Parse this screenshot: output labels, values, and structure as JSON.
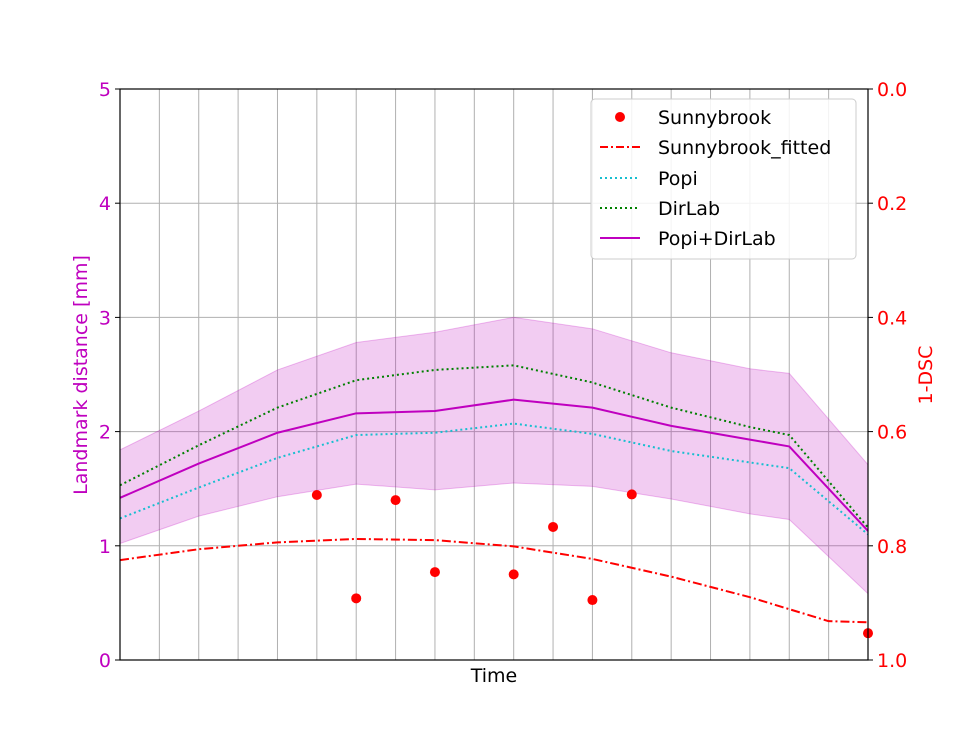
{
  "chart_data": {
    "type": "line",
    "xlabel": "Time",
    "ylabel_left": "Landmark distance [mm]",
    "ylabel_right": "1-DSC",
    "ylim_left": [
      0,
      5
    ],
    "ylim_right": [
      1.0,
      0.0
    ],
    "xlim": [
      0,
      19
    ],
    "x_grid": [
      0,
      1,
      2,
      3,
      4,
      5,
      6,
      7,
      8,
      9,
      10,
      11,
      12,
      13,
      14,
      15,
      16,
      17,
      18,
      19
    ],
    "yticks_left": [
      0,
      1,
      2,
      3,
      4,
      5
    ],
    "yticks_right": [
      "0.0",
      "0.2",
      "0.4",
      "0.6",
      "0.8",
      "1.0"
    ],
    "colors": {
      "left_axis": "#bf00bf",
      "right_axis": "#ff0000",
      "sunnybrook": "#ff0000",
      "popi": "#17becf",
      "dirlab": "#008000",
      "popi_dirlab": "#bf00bf",
      "band": "#bf00bf"
    },
    "legend": {
      "position": "top-right",
      "entries": [
        "Sunnybrook",
        "Sunnybrook_fitted",
        "Popi",
        "DirLab",
        "Popi+DirLab"
      ]
    },
    "series": [
      {
        "name": "Popi",
        "style": "dotted",
        "axis": "left",
        "x": [
          0,
          2,
          4,
          6,
          8,
          10,
          12,
          14,
          16,
          17,
          19
        ],
        "y": [
          1.24,
          1.51,
          1.77,
          1.97,
          1.99,
          2.07,
          1.98,
          1.83,
          1.73,
          1.68,
          1.1
        ]
      },
      {
        "name": "DirLab",
        "style": "dotted",
        "axis": "left",
        "x": [
          0,
          2,
          4,
          6,
          8,
          10,
          12,
          14,
          16,
          17,
          19
        ],
        "y": [
          1.53,
          1.88,
          2.21,
          2.45,
          2.54,
          2.58,
          2.43,
          2.21,
          2.04,
          1.97,
          1.16
        ]
      },
      {
        "name": "Popi+DirLab",
        "style": "solid",
        "axis": "left",
        "x": [
          0,
          2,
          4,
          6,
          8,
          10,
          12,
          14,
          16,
          17,
          19
        ],
        "y": [
          1.42,
          1.72,
          1.99,
          2.16,
          2.18,
          2.28,
          2.21,
          2.05,
          1.93,
          1.87,
          1.13
        ]
      },
      {
        "name": "Sunnybrook_fitted",
        "style": "dashdot",
        "axis": "right",
        "x": [
          0,
          2,
          4,
          6,
          8,
          10,
          12,
          14,
          16,
          18,
          19
        ],
        "y": [
          0.825,
          0.806,
          0.794,
          0.788,
          0.79,
          0.801,
          0.823,
          0.854,
          0.89,
          0.932,
          0.934
        ]
      },
      {
        "name": "Sunnybrook",
        "style": "scatter",
        "axis": "right",
        "x": [
          5,
          6,
          7,
          8,
          10,
          11,
          12,
          13,
          19
        ],
        "y": [
          0.711,
          0.892,
          0.72,
          0.846,
          0.85,
          0.767,
          0.895,
          0.71,
          0.953
        ]
      }
    ],
    "band": {
      "name": "Popi+DirLab range",
      "axis": "left",
      "x": [
        0,
        2,
        4,
        6,
        8,
        10,
        12,
        14,
        16,
        17,
        19
      ],
      "upper": [
        1.84,
        2.18,
        2.54,
        2.78,
        2.87,
        3.0,
        2.9,
        2.69,
        2.55,
        2.51,
        1.71
      ],
      "lower": [
        1.02,
        1.26,
        1.43,
        1.54,
        1.49,
        1.55,
        1.52,
        1.41,
        1.28,
        1.23,
        0.58
      ]
    }
  }
}
